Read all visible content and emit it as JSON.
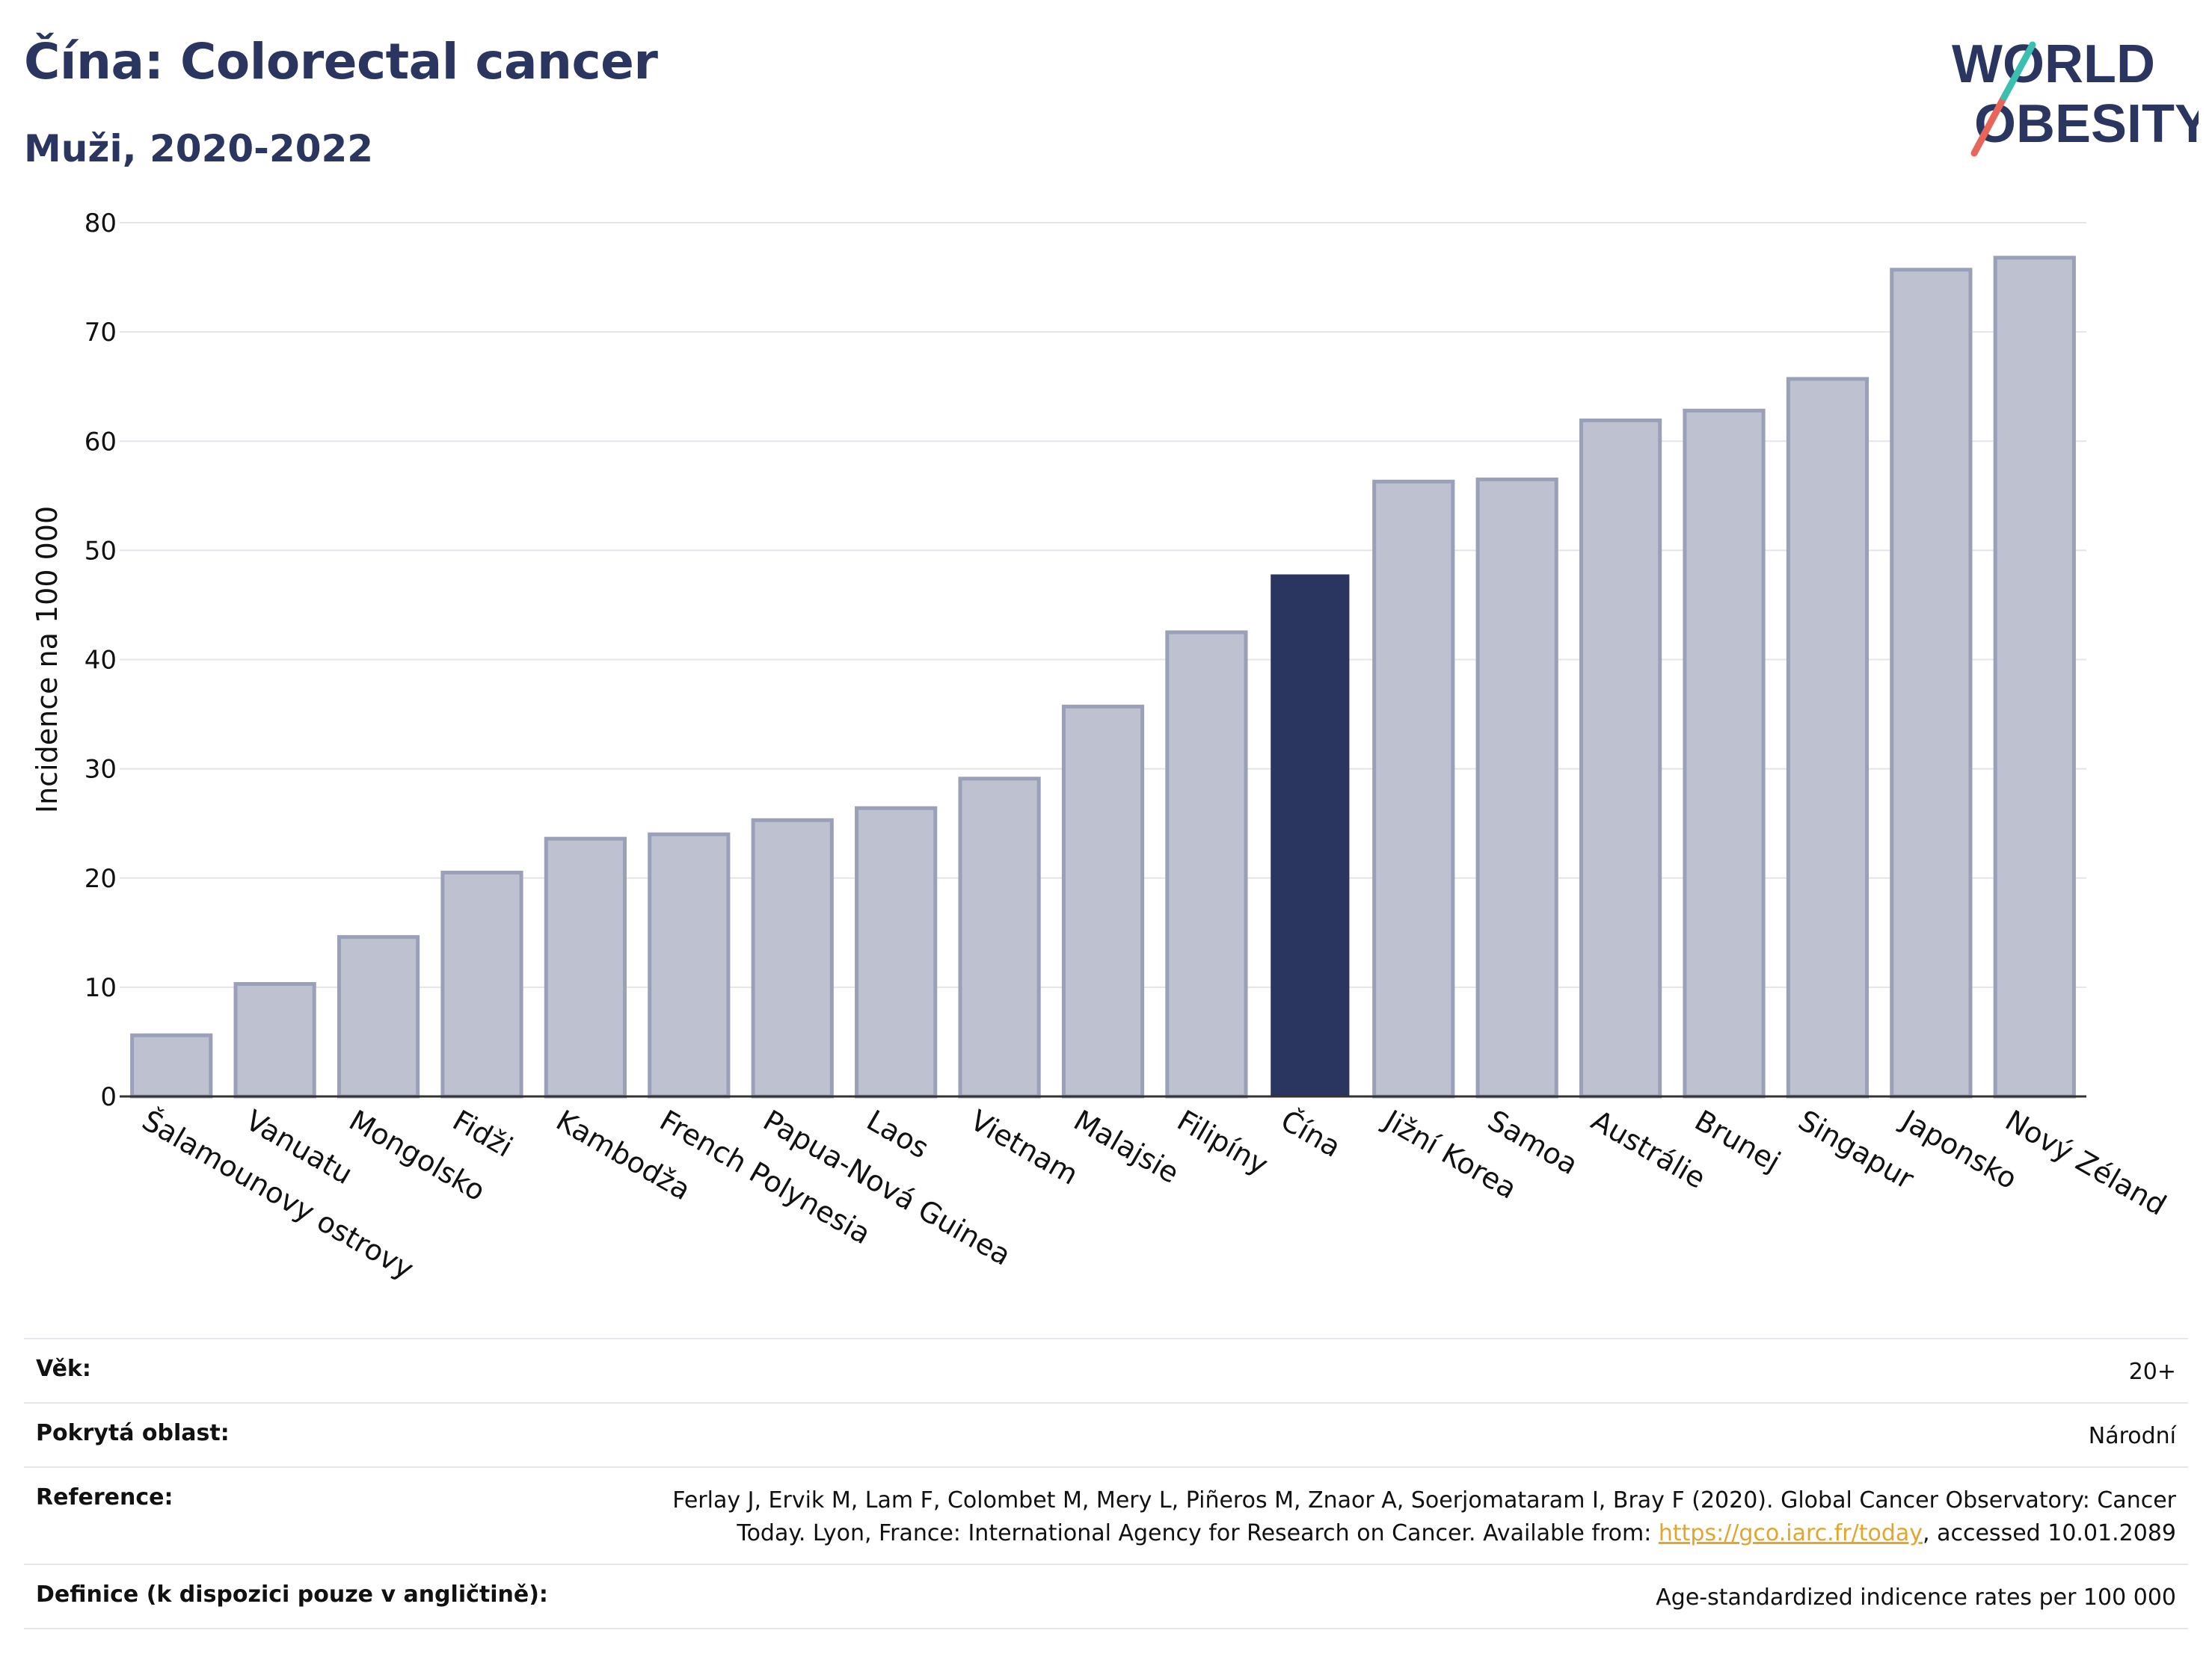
{
  "title": "Čína: Colorectal cancer",
  "subtitle": "Muži, 2020-2022",
  "logo": {
    "line1": "WORLD",
    "line2": "OBESITY"
  },
  "colors": {
    "highlight": "#2b3660",
    "bar": "#bec2d0",
    "bar_border": "#9aa0b8",
    "accent_red": "#e8655a",
    "accent_teal": "#3bbfb0"
  },
  "chart_data": {
    "type": "bar",
    "ylabel": "Incidence na 100 000",
    "ylim": [
      0,
      80
    ],
    "yticks": [
      0,
      10,
      20,
      30,
      40,
      50,
      60,
      70,
      80
    ],
    "grid": true,
    "highlight": "Čína",
    "categories": [
      "Šalamounovy ostrovy",
      "Vanuatu",
      "Mongolsko",
      "Fidži",
      "Kambodža",
      "French Polynesia",
      "Papua-Nová Guinea",
      "Laos",
      "Vietnam",
      "Malajsie",
      "Filipíny",
      "Čína",
      "Jižní Korea",
      "Samoa",
      "Austrálie",
      "Brunej",
      "Singapur",
      "Japonsko",
      "Nový Zéland"
    ],
    "values": [
      5.6,
      10.3,
      14.6,
      20.5,
      23.6,
      24.0,
      25.3,
      26.4,
      29.1,
      35.7,
      42.5,
      47.8,
      56.3,
      56.5,
      61.9,
      62.8,
      65.7,
      75.7,
      76.8
    ]
  },
  "meta": [
    {
      "label": "Věk:",
      "value": "20+"
    },
    {
      "label": "Pokrytá oblast:",
      "value": "Národní"
    },
    {
      "label": "Reference:",
      "value_line1": "Ferlay J, Ervik M, Lam F, Colombet M, Mery L, Piñeros M, Znaor A, Soerjomataram I, Bray F (2020). Global Cancer Observatory: Cancer",
      "value_pre": "Today. Lyon, France: International Agency for Research on Cancer. Available from: ",
      "link": "https://gco.iarc.fr/today",
      "value_post": ", accessed 10.01.2089"
    },
    {
      "label": "Definice (k dispozici pouze v angličtině):",
      "value": "Age-standardized indicence rates per 100 000"
    }
  ]
}
